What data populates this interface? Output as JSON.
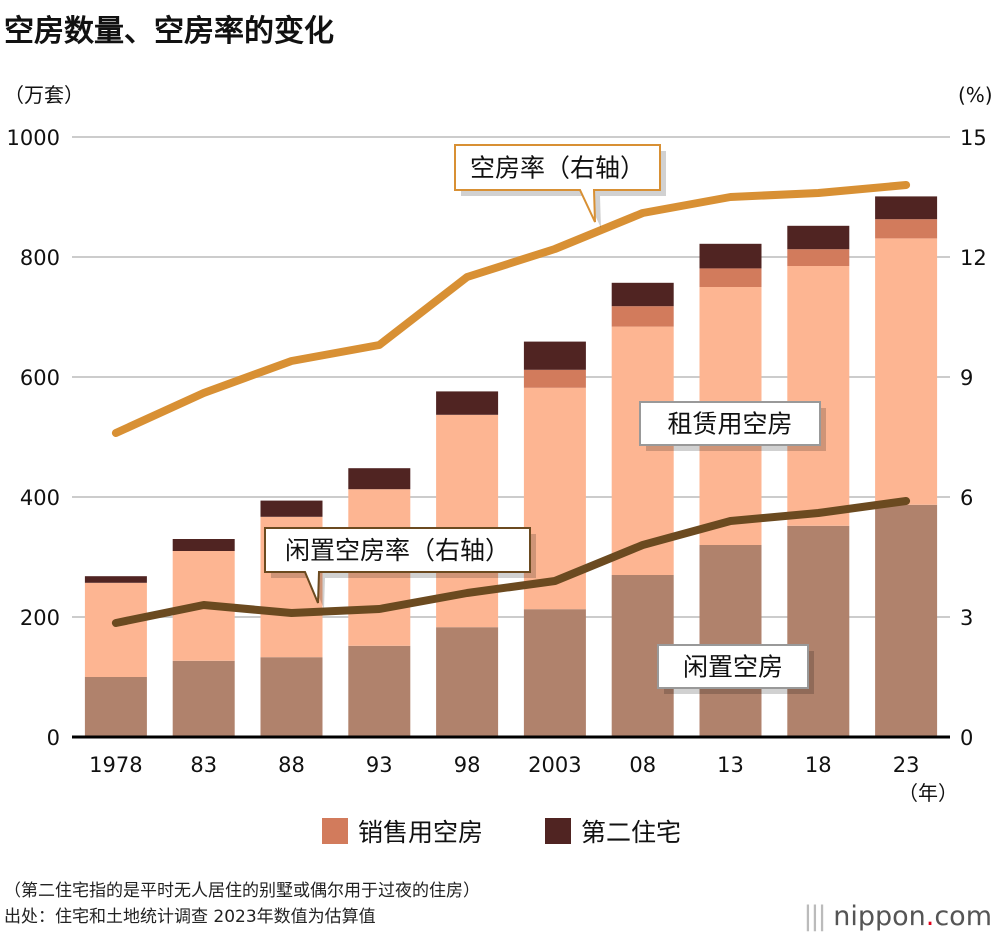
{
  "title": "空房数量、空房率的变化",
  "chart_data": {
    "type": "bar",
    "stacked": true,
    "categories": [
      "1978",
      "83",
      "88",
      "93",
      "98",
      "2003",
      "08",
      "13",
      "18",
      "23"
    ],
    "x_unit": "（年）",
    "left_axis": {
      "label": "（万套）",
      "ylim": [
        0,
        1000
      ],
      "ticks": [
        "0",
        "200",
        "400",
        "600",
        "800",
        "1000"
      ]
    },
    "right_axis": {
      "label": "(%)",
      "ylim": [
        0,
        15
      ],
      "ticks": [
        "0",
        "3",
        "6",
        "9",
        "12",
        "15"
      ]
    },
    "grid": true,
    "series": [
      {
        "name": "闲置空房",
        "type": "bar",
        "color": "#b0826c",
        "values": [
          100,
          127,
          133,
          152,
          183,
          213,
          270,
          320,
          352,
          387
        ]
      },
      {
        "name": "租赁用空房",
        "type": "bar",
        "color": "#fdb592",
        "values": [
          157,
          183,
          234,
          261,
          354,
          369,
          414,
          430,
          433,
          444
        ]
      },
      {
        "name": "销售用空房",
        "type": "bar",
        "color": "#d27b5c",
        "values": [
          0,
          0,
          0,
          0,
          0,
          30,
          34,
          31,
          28,
          32
        ]
      },
      {
        "name": "第二住宅",
        "type": "bar",
        "color": "#502422",
        "values": [
          11,
          20,
          27,
          35,
          39,
          47,
          39,
          41,
          39,
          38
        ]
      },
      {
        "name": "空房率（右轴）",
        "type": "line",
        "axis": "right",
        "color": "#d89034",
        "values": [
          7.6,
          8.6,
          9.4,
          9.8,
          11.5,
          12.2,
          13.1,
          13.5,
          13.6,
          13.8
        ]
      },
      {
        "name": "闲置空房率（右轴）",
        "type": "line",
        "axis": "right",
        "color": "#6b4a20",
        "values": [
          2.85,
          3.3,
          3.1,
          3.2,
          3.6,
          3.9,
          4.8,
          5.4,
          5.6,
          5.9
        ]
      }
    ],
    "legend": {
      "position": "bottom",
      "items": [
        "销售用空房",
        "第二住宅"
      ]
    }
  },
  "labels": {
    "vacancy_rate": "空房率（右轴）",
    "idle_rate": "闲置空房率（右轴）",
    "rental": "租赁用空房",
    "idle": "闲置空房"
  },
  "notes": {
    "note1": "（第二住宅指的是平时无人居住的别墅或偶尔用于过夜的住房）",
    "source": "出处：住宅和土地统计调查 2023年数值为估算值"
  },
  "logo": {
    "name": "nippon",
    "dot": ".",
    "tld": "com"
  }
}
